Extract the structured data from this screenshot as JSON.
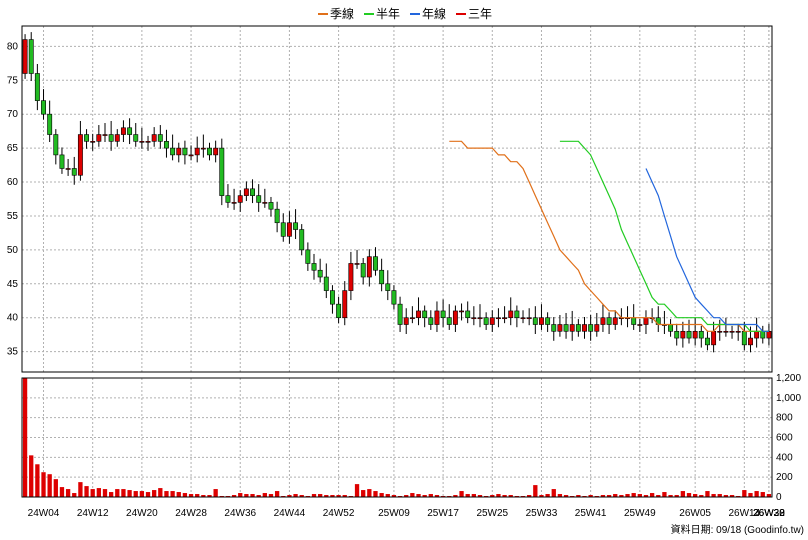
{
  "legend": {
    "items": [
      {
        "label": "季線",
        "color": "#e0701a"
      },
      {
        "label": "半年",
        "color": "#22cc22"
      },
      {
        "label": "年線",
        "color": "#2266dd"
      },
      {
        "label": "三年",
        "color": "#dd0000"
      }
    ]
  },
  "footer": {
    "source": "資料日期: 09/18  (Goodinfo.tw)"
  },
  "colors": {
    "up": "#dd0000",
    "down": "#22bb22",
    "volume": "#dd0000"
  },
  "chart_data": {
    "type": "candlestick",
    "title": "",
    "price_axis": {
      "ticks": [
        35,
        40,
        45,
        50,
        55,
        60,
        65,
        70,
        75,
        80
      ],
      "range": [
        32,
        83
      ]
    },
    "volume_axis": {
      "ticks": [
        "0",
        "200",
        "400",
        "600",
        "800",
        "1,000",
        "1,200"
      ],
      "range": [
        0,
        1200
      ]
    },
    "x_tick_labels": [
      "24W04",
      "24W12",
      "24W20",
      "24W28",
      "24W36",
      "24W44",
      "24W52",
      "25W09",
      "25W17",
      "25W25",
      "25W33",
      "25W41",
      "25W49",
      "26W05",
      "26W14",
      "26W22",
      "26W30",
      "26W38"
    ],
    "week_index_first_label": 4,
    "grid": true,
    "legend_position": "top-center",
    "weekly_close": [
      81,
      76,
      72,
      70,
      67,
      64,
      62,
      62,
      61,
      67,
      66,
      66,
      67,
      67,
      66,
      67,
      68,
      67,
      66,
      66,
      66,
      67,
      66,
      65,
      64,
      65,
      64,
      64,
      65,
      65,
      64,
      65,
      58,
      57,
      57,
      58,
      59,
      58,
      57,
      57,
      56,
      54,
      52,
      54,
      53,
      50,
      48,
      47,
      46,
      44,
      42,
      40,
      44,
      48,
      48,
      46,
      49,
      47,
      45,
      44,
      42,
      39,
      40,
      40,
      41,
      40,
      39,
      41,
      40,
      39,
      41,
      41,
      40,
      40,
      40,
      39,
      40,
      40,
      40,
      41,
      40,
      40,
      40,
      39,
      40,
      39,
      38,
      39,
      38,
      39,
      38,
      39,
      38,
      39,
      40,
      39,
      40,
      40,
      40,
      39,
      39,
      40,
      40,
      39,
      39,
      38,
      37,
      38,
      37,
      38,
      37,
      36,
      38,
      38,
      38,
      38,
      38,
      36,
      37,
      38,
      37,
      38
    ],
    "ma_quarter": [
      66,
      66,
      66,
      65,
      65,
      65,
      65,
      65,
      64,
      64,
      63,
      63,
      62,
      60,
      58,
      56,
      54,
      52,
      50,
      49,
      48,
      47,
      45,
      44,
      43,
      42,
      41,
      41,
      40,
      40,
      40,
      40,
      40,
      40,
      39,
      39,
      39,
      39,
      39,
      39,
      39,
      39,
      38,
      38,
      39,
      39,
      39,
      39,
      38,
      38,
      38,
      38,
      38
    ],
    "ma_half": [
      66,
      66,
      66,
      66,
      65,
      64,
      62,
      60,
      58,
      56,
      53,
      51,
      49,
      47,
      45,
      43,
      42,
      42,
      41,
      40,
      40,
      40,
      40,
      40,
      39,
      39,
      39,
      39,
      39,
      39,
      39,
      38,
      38,
      38,
      38
    ],
    "ma_year": [
      62,
      60,
      58,
      55,
      52,
      49,
      47,
      45,
      43,
      42,
      41,
      40,
      40,
      39,
      39,
      39,
      39,
      39,
      39,
      38,
      38
    ],
    "volume": [
      1200,
      420,
      330,
      250,
      230,
      180,
      100,
      80,
      40,
      150,
      110,
      80,
      90,
      80,
      50,
      80,
      80,
      70,
      60,
      60,
      50,
      70,
      90,
      60,
      60,
      50,
      40,
      30,
      30,
      20,
      20,
      80,
      10,
      10,
      20,
      40,
      30,
      30,
      20,
      40,
      30,
      60,
      10,
      20,
      30,
      20,
      10,
      30,
      30,
      20,
      20,
      20,
      20,
      10,
      130,
      70,
      80,
      60,
      40,
      30,
      20,
      10,
      20,
      40,
      30,
      20,
      30,
      20,
      10,
      10,
      20,
      60,
      30,
      30,
      20,
      10,
      20,
      30,
      20,
      20,
      10,
      10,
      20,
      120,
      20,
      30,
      80,
      30,
      20,
      10,
      20,
      10,
      20,
      10,
      20,
      20,
      30,
      20,
      30,
      40,
      30,
      20,
      40,
      20,
      50,
      20,
      20,
      60,
      40,
      30,
      20,
      60,
      30,
      30,
      20,
      20,
      10,
      70,
      40,
      60,
      50,
      30
    ]
  }
}
